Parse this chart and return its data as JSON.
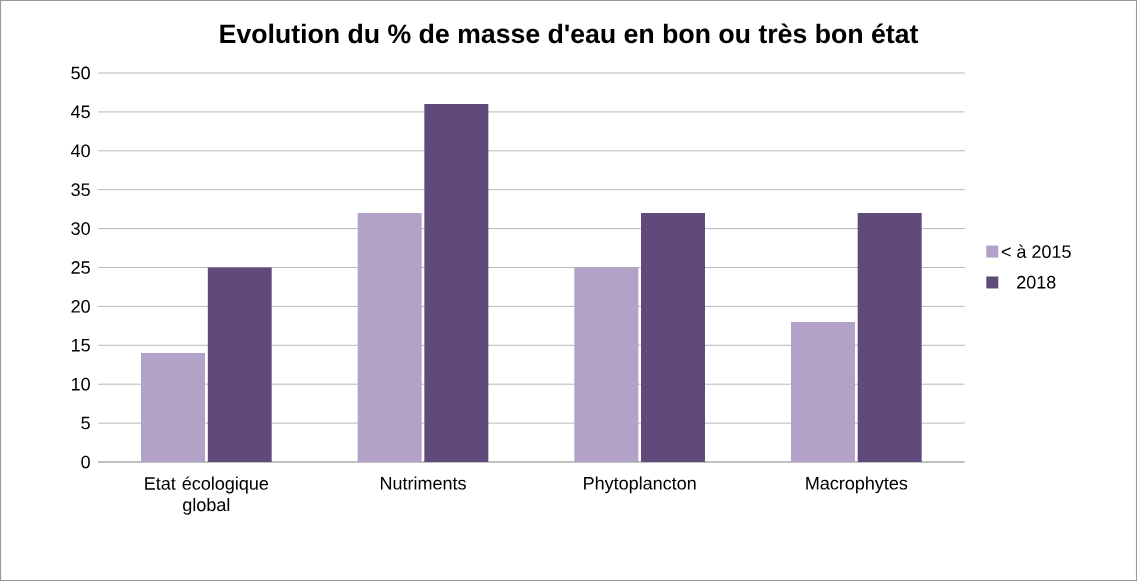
{
  "chart_data": {
    "type": "bar",
    "title": "Evolution du % de masse d'eau en bon ou très bon état",
    "categories": [
      "Etat écologique global",
      "Nutriments",
      "Phytoplancton",
      "Macrophytes"
    ],
    "series": [
      {
        "name": "< à 2015",
        "color": "#b3a2c7",
        "values": [
          14,
          32,
          25,
          18
        ]
      },
      {
        "name": "2018",
        "color": "#604a7b",
        "values": [
          25,
          46,
          32,
          32
        ]
      }
    ],
    "ylim": [
      0,
      50
    ],
    "yticks": [
      0,
      5,
      10,
      15,
      20,
      25,
      30,
      35,
      40,
      45,
      50
    ],
    "grid": "y",
    "legend": "right"
  }
}
